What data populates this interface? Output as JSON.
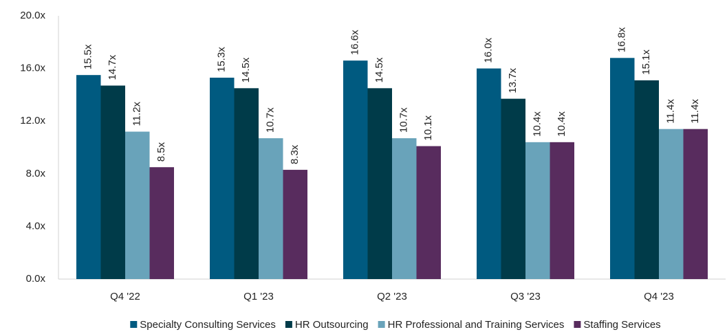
{
  "chart_data": {
    "type": "bar",
    "categories": [
      "Q4 '22",
      "Q1 '23",
      "Q2 '23",
      "Q3 '23",
      "Q4 '23"
    ],
    "series": [
      {
        "name": "Specialty Consulting Services",
        "color": "#005a80",
        "values": [
          15.5,
          15.3,
          16.6,
          16.0,
          16.8
        ],
        "value_labels": [
          "15.5x",
          "15.3x",
          "16.6x",
          "16.0x",
          "16.8x"
        ]
      },
      {
        "name": "HR Outsourcing",
        "color": "#003b49",
        "values": [
          14.7,
          14.5,
          14.5,
          13.7,
          15.1
        ],
        "value_labels": [
          "14.7x",
          "14.5x",
          "14.5x",
          "13.7x",
          "15.1x"
        ]
      },
      {
        "name": "HR Professional and Training Services",
        "color": "#69a3ba",
        "values": [
          11.2,
          10.7,
          10.7,
          10.4,
          11.4
        ],
        "value_labels": [
          "11.2x",
          "10.7x",
          "10.7x",
          "10.4x",
          "11.4x"
        ]
      },
      {
        "name": "Staffing Services",
        "color": "#582c5e",
        "values": [
          8.5,
          8.3,
          10.1,
          10.4,
          11.4
        ],
        "value_labels": [
          "8.5x",
          "8.3x",
          "10.1x",
          "10.4x",
          "11.4x"
        ]
      }
    ],
    "ylim": [
      0,
      20
    ],
    "yticks": [
      {
        "value": 0,
        "label": "0.0x"
      },
      {
        "value": 4,
        "label": "4.0x"
      },
      {
        "value": 8,
        "label": "8.0x"
      },
      {
        "value": 12,
        "label": "12.0x"
      },
      {
        "value": 16,
        "label": "16.0x"
      },
      {
        "value": 20,
        "label": "20.0x"
      }
    ],
    "grid": false,
    "legend": "bottom"
  }
}
